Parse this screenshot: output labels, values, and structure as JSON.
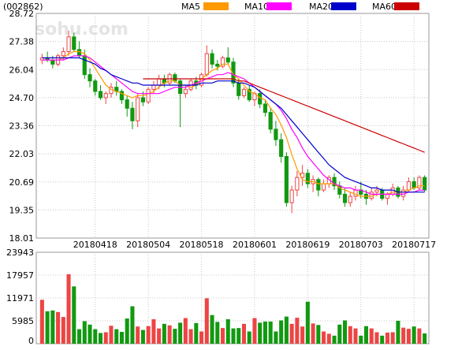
{
  "header": {
    "code": "(002862)",
    "legend": [
      {
        "name": "MA5",
        "color": "#ff9900"
      },
      {
        "name": "MA10",
        "color": "#ff00ff"
      },
      {
        "name": "MA20",
        "color": "#0000cc"
      },
      {
        "name": "MA60",
        "color": "#cc0000"
      }
    ],
    "watermark": "sohu.com"
  },
  "colors": {
    "up": "#ee4444",
    "down": "#119911",
    "grid": "#c8c8c8",
    "axis_text": "#000000"
  },
  "chart_data": [
    {
      "type": "candlestick",
      "title": "",
      "ylim": [
        18.01,
        28.72
      ],
      "y_ticks": [
        "28.72",
        "27.38",
        "26.04",
        "24.70",
        "23.36",
        "22.03",
        "20.69",
        "19.35",
        "18.01"
      ],
      "x_ticks": [
        {
          "label": "20180418",
          "index": 10
        },
        {
          "label": "20180504",
          "index": 20
        },
        {
          "label": "20180518",
          "index": 30
        },
        {
          "label": "20180601",
          "index": 40
        },
        {
          "label": "20180619",
          "index": 50
        },
        {
          "label": "20180703",
          "index": 60
        },
        {
          "label": "20180717",
          "index": 70
        }
      ],
      "ohlc": [
        [
          26.5,
          26.8,
          26.3,
          26.6
        ],
        [
          26.6,
          26.9,
          26.4,
          26.5
        ],
        [
          26.5,
          26.7,
          26.1,
          26.3
        ],
        [
          26.3,
          26.8,
          26.2,
          26.7
        ],
        [
          26.7,
          27.1,
          26.5,
          26.9
        ],
        [
          26.9,
          27.9,
          26.7,
          27.6
        ],
        [
          27.6,
          27.8,
          26.9,
          27.0
        ],
        [
          27.0,
          27.4,
          26.6,
          26.7
        ],
        [
          26.7,
          27.0,
          25.6,
          25.8
        ],
        [
          25.8,
          26.1,
          25.2,
          25.5
        ],
        [
          25.5,
          25.6,
          24.8,
          25.0
        ],
        [
          25.0,
          25.3,
          24.6,
          24.7
        ],
        [
          24.7,
          25.0,
          24.4,
          24.9
        ],
        [
          24.9,
          25.4,
          24.7,
          25.2
        ],
        [
          25.2,
          25.5,
          24.8,
          25.0
        ],
        [
          25.0,
          25.1,
          24.4,
          24.6
        ],
        [
          24.6,
          24.8,
          23.8,
          24.2
        ],
        [
          24.2,
          24.5,
          23.2,
          23.6
        ],
        [
          23.6,
          24.9,
          23.3,
          24.7
        ],
        [
          24.7,
          25.0,
          24.3,
          24.5
        ],
        [
          24.5,
          25.2,
          24.4,
          25.1
        ],
        [
          25.1,
          25.5,
          24.9,
          25.3
        ],
        [
          25.3,
          25.8,
          25.1,
          25.6
        ],
        [
          25.6,
          25.8,
          25.2,
          25.4
        ],
        [
          25.4,
          25.9,
          25.3,
          25.8
        ],
        [
          25.8,
          25.9,
          25.4,
          25.5
        ],
        [
          25.5,
          25.6,
          23.3,
          24.9
        ],
        [
          24.9,
          25.3,
          24.7,
          25.1
        ],
        [
          25.1,
          25.6,
          25.0,
          25.5
        ],
        [
          25.5,
          25.7,
          25.1,
          25.3
        ],
        [
          25.3,
          25.9,
          25.2,
          25.8
        ],
        [
          25.8,
          27.2,
          25.7,
          26.8
        ],
        [
          26.8,
          27.0,
          26.1,
          26.3
        ],
        [
          26.3,
          26.5,
          26.0,
          26.2
        ],
        [
          26.2,
          26.7,
          26.1,
          26.6
        ],
        [
          26.6,
          27.1,
          26.3,
          26.4
        ],
        [
          26.4,
          26.6,
          25.2,
          25.4
        ],
        [
          25.4,
          25.6,
          24.6,
          24.8
        ],
        [
          24.8,
          25.2,
          24.7,
          25.1
        ],
        [
          25.1,
          25.3,
          24.5,
          24.6
        ],
        [
          24.6,
          25.0,
          24.3,
          24.9
        ],
        [
          24.9,
          25.1,
          24.2,
          24.4
        ],
        [
          24.4,
          24.6,
          23.8,
          24.0
        ],
        [
          24.0,
          24.2,
          23.0,
          23.2
        ],
        [
          23.2,
          23.6,
          22.4,
          22.7
        ],
        [
          22.7,
          23.0,
          21.6,
          21.9
        ],
        [
          21.9,
          22.1,
          19.5,
          19.7
        ],
        [
          19.7,
          20.5,
          19.2,
          20.3
        ],
        [
          20.3,
          21.2,
          20.0,
          20.9
        ],
        [
          20.9,
          21.5,
          20.5,
          21.1
        ],
        [
          21.1,
          21.3,
          20.4,
          20.6
        ],
        [
          20.6,
          21.0,
          20.2,
          20.8
        ],
        [
          20.8,
          20.9,
          20.0,
          20.3
        ],
        [
          20.3,
          20.8,
          20.2,
          20.6
        ],
        [
          20.6,
          21.0,
          20.4,
          20.9
        ],
        [
          20.9,
          21.1,
          20.3,
          20.5
        ],
        [
          20.5,
          20.7,
          19.9,
          20.1
        ],
        [
          20.1,
          20.4,
          19.5,
          19.7
        ],
        [
          19.7,
          20.2,
          19.5,
          20.0
        ],
        [
          20.0,
          20.5,
          19.8,
          20.3
        ],
        [
          20.3,
          20.7,
          19.9,
          20.1
        ],
        [
          20.1,
          20.3,
          19.6,
          19.9
        ],
        [
          19.9,
          20.4,
          19.8,
          20.2
        ],
        [
          20.2,
          20.5,
          20.0,
          20.3
        ],
        [
          20.3,
          20.4,
          19.8,
          19.9
        ],
        [
          19.9,
          20.2,
          19.6,
          20.1
        ],
        [
          20.1,
          20.6,
          20.0,
          20.4
        ],
        [
          20.4,
          20.5,
          19.9,
          20.0
        ],
        [
          20.0,
          20.5,
          19.8,
          20.3
        ],
        [
          20.3,
          20.9,
          20.2,
          20.7
        ],
        [
          20.7,
          20.9,
          20.3,
          20.4
        ],
        [
          20.4,
          21.0,
          20.3,
          20.9
        ],
        [
          20.9,
          21.0,
          20.2,
          20.3
        ]
      ],
      "ma": {
        "MA5": [
          26.5,
          26.5,
          26.5,
          26.5,
          26.6,
          26.8,
          26.9,
          26.9,
          26.8,
          26.5,
          26.1,
          25.7,
          25.3,
          25.1,
          25.0,
          24.9,
          24.8,
          24.7,
          24.8,
          24.8,
          24.9,
          25.0,
          25.2,
          25.4,
          25.5,
          25.5,
          25.3,
          25.3,
          25.2,
          25.3,
          25.6,
          25.8,
          26.0,
          26.1,
          26.3,
          26.3,
          25.8,
          25.6,
          25.3,
          25.0,
          24.9,
          24.7,
          24.6,
          24.2,
          23.9,
          23.4,
          22.8,
          22.0,
          21.3,
          20.8,
          20.7,
          20.7,
          20.6,
          20.6,
          20.6,
          20.6,
          20.4,
          20.3,
          20.2,
          20.1,
          20.0,
          20.0,
          20.0,
          20.1,
          20.1,
          20.1,
          20.2,
          20.2,
          20.2,
          20.3,
          20.4,
          20.5,
          20.5
        ],
        "MA10": [
          26.5,
          26.5,
          26.5,
          26.5,
          26.5,
          26.6,
          26.7,
          26.7,
          26.7,
          26.6,
          26.4,
          26.2,
          26.0,
          25.8,
          25.6,
          25.4,
          25.2,
          25.0,
          24.9,
          24.9,
          24.9,
          24.9,
          24.9,
          25.0,
          25.1,
          25.2,
          25.2,
          25.2,
          25.3,
          25.4,
          25.5,
          25.6,
          25.7,
          25.8,
          25.8,
          25.9,
          25.8,
          25.7,
          25.6,
          25.4,
          25.2,
          25.0,
          24.8,
          24.6,
          24.4,
          24.1,
          23.7,
          23.2,
          22.8,
          22.3,
          21.9,
          21.6,
          21.3,
          21.0,
          20.8,
          20.6,
          20.5,
          20.4,
          20.4,
          20.3,
          20.3,
          20.2,
          20.1,
          20.1,
          20.1,
          20.1,
          20.1,
          20.1,
          20.1,
          20.2,
          20.2,
          20.3,
          20.3
        ],
        "MA20": [
          26.6,
          26.6,
          26.6,
          26.6,
          26.6,
          26.6,
          26.6,
          26.6,
          26.5,
          26.4,
          26.3,
          26.1,
          26.0,
          25.8,
          25.7,
          25.6,
          25.5,
          25.4,
          25.4,
          25.3,
          25.3,
          25.3,
          25.3,
          25.3,
          25.3,
          25.3,
          25.3,
          25.3,
          25.3,
          25.3,
          25.4,
          25.4,
          25.4,
          25.5,
          25.5,
          25.5,
          25.5,
          25.4,
          25.4,
          25.3,
          25.2,
          25.0,
          24.8,
          24.6,
          24.4,
          24.2,
          23.9,
          23.6,
          23.3,
          23.0,
          22.7,
          22.4,
          22.1,
          21.8,
          21.5,
          21.3,
          21.1,
          20.9,
          20.8,
          20.7,
          20.6,
          20.5,
          20.4,
          20.4,
          20.3,
          20.3,
          20.3,
          20.2,
          20.2,
          20.2,
          20.2,
          20.2,
          20.2
        ],
        "MA60": [
          null,
          null,
          null,
          null,
          null,
          null,
          null,
          null,
          null,
          null,
          null,
          null,
          null,
          null,
          null,
          null,
          null,
          null,
          null,
          25.6,
          25.6,
          25.6,
          25.6,
          25.6,
          25.6,
          25.6,
          25.6,
          25.6,
          25.6,
          25.6,
          25.6,
          25.6,
          25.6,
          25.6,
          25.6,
          25.6,
          25.6,
          25.5,
          25.5,
          25.4,
          25.3,
          25.2,
          25.1,
          25.0,
          24.9,
          24.8,
          24.7,
          24.6,
          24.5,
          24.4,
          24.3,
          24.2,
          24.1,
          24.0,
          23.9,
          23.8,
          23.7,
          23.6,
          23.5,
          23.4,
          23.3,
          23.2,
          23.1,
          23.0,
          22.9,
          22.8,
          22.7,
          22.6,
          22.5,
          22.4,
          22.3,
          22.2,
          22.1
        ]
      }
    },
    {
      "type": "bar",
      "title": "",
      "ylim": [
        0,
        23943
      ],
      "y_ticks": [
        "23943",
        "17957",
        "11971",
        "5985",
        "0"
      ],
      "volume": [
        11500,
        8500,
        8700,
        8300,
        7000,
        18200,
        15000,
        3800,
        5900,
        5000,
        3800,
        2800,
        3000,
        4700,
        3800,
        3100,
        6600,
        9800,
        4500,
        3600,
        4600,
        6400,
        4000,
        5200,
        4800,
        3900,
        5500,
        6700,
        3800,
        5400,
        3200,
        11900,
        7500,
        5700,
        4100,
        6400,
        4000,
        4100,
        5200,
        3200,
        6700,
        5500,
        5800,
        5800,
        3200,
        6100,
        7100,
        5200,
        6800,
        4500,
        11000,
        5300,
        4900,
        3200,
        2600,
        2100,
        5000,
        6100,
        4600,
        4000,
        2100,
        4600,
        4000,
        3000,
        2100,
        2900,
        3000,
        6000,
        4200,
        3900,
        4500,
        4000,
        2700
      ]
    }
  ]
}
